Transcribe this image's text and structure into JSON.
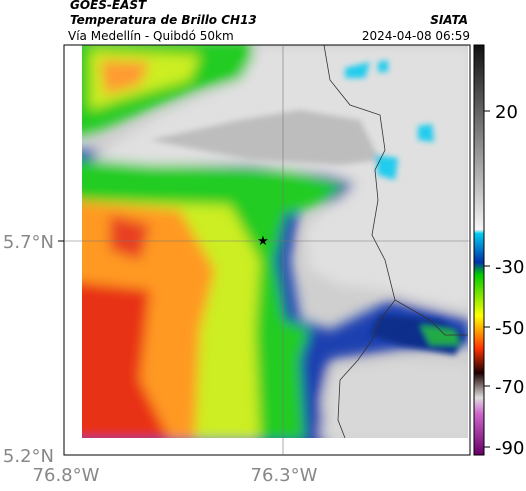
{
  "header": {
    "satellite": "GOES-EAST",
    "product": "Temperatura de Brillo CH13",
    "source": "SIATA",
    "region": "Vía Medellín - Quibdó 50km",
    "datetime": "2024-04-08 06:59"
  },
  "map": {
    "lat_labels": [
      "5.7°N",
      "5.2°N"
    ],
    "lon_labels": [
      "76.8°W",
      "76.3°W"
    ]
  },
  "colorbar": {
    "labels": [
      "20",
      "-30",
      "-50",
      "-70",
      "-90"
    ]
  }
}
